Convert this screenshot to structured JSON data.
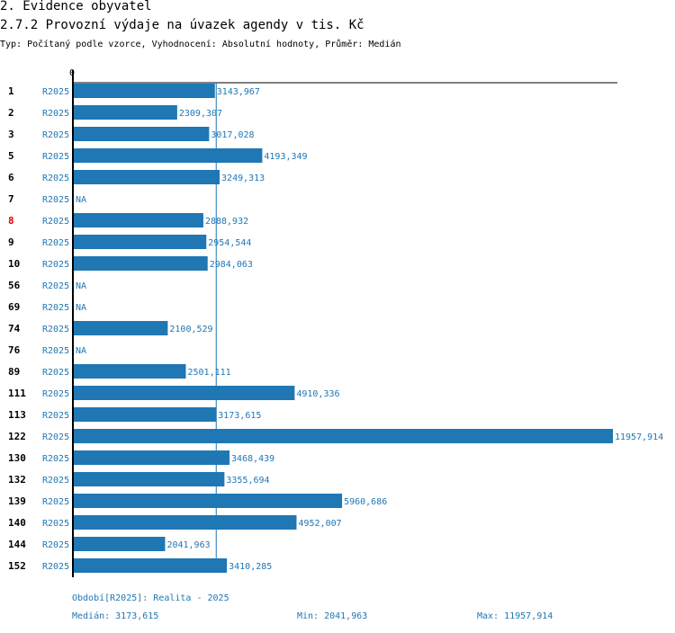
{
  "header": {
    "section": "2. Evidence obyvatel",
    "title": "2.7.2 Provozní výdaje na úvazek agendy v tis. Kč",
    "subtitle": "Typ: Počítaný podle vzorce, Vyhodnocení: Absolutní hodnoty, Průměr: Medián"
  },
  "colors": {
    "bar": "#1f77b4",
    "label": "#1f77b4",
    "highlight": "#e00000",
    "axis": "#000000"
  },
  "chart_data": {
    "type": "bar",
    "orientation": "horizontal",
    "axis_zero_label": "0",
    "series_name": "R2025",
    "xlim": [
      0,
      11957.914
    ],
    "median": 3173.615,
    "highlight_category": "8",
    "categories": [
      "1",
      "2",
      "3",
      "5",
      "6",
      "7",
      "8",
      "9",
      "10",
      "56",
      "69",
      "74",
      "76",
      "89",
      "111",
      "113",
      "122",
      "130",
      "132",
      "139",
      "140",
      "144",
      "152"
    ],
    "values": [
      3143.967,
      2309.307,
      3017.028,
      4193.349,
      3249.313,
      null,
      2888.932,
      2954.544,
      2984.063,
      null,
      null,
      2100.529,
      null,
      2501.111,
      4910.336,
      3173.615,
      11957.914,
      3468.439,
      3355.694,
      5960.686,
      4952.007,
      2041.963,
      3410.285
    ],
    "value_labels": [
      "3143,967",
      "2309,307",
      "3017,028",
      "4193,349",
      "3249,313",
      "NA",
      "2888,932",
      "2954,544",
      "2984,063",
      "NA",
      "NA",
      "2100,529",
      "NA",
      "2501,111",
      "4910,336",
      "3173,615",
      "11957,914",
      "3468,439",
      "3355,694",
      "5960,686",
      "4952,007",
      "2041,963",
      "3410,285"
    ]
  },
  "footer": {
    "period": "Období[R2025]: Realita - 2025",
    "median": "Medián: 3173,615",
    "min": "Min: 2041,963",
    "max": "Max: 11957,914"
  }
}
